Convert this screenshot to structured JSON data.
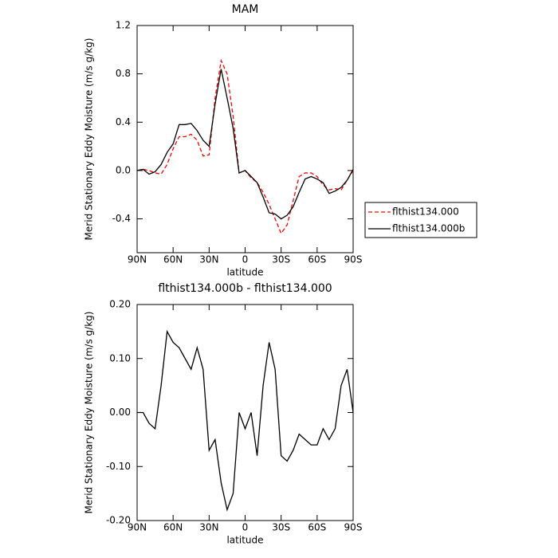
{
  "chart_data": [
    {
      "type": "line",
      "title": "MAM",
      "x_label": "latitude",
      "y_label": "Merid Stationary Eddy Moisture (m/s g/kg)",
      "x": [
        90,
        85,
        80,
        75,
        70,
        65,
        60,
        55,
        50,
        45,
        40,
        35,
        30,
        25,
        20,
        15,
        10,
        5,
        0,
        -5,
        -10,
        -15,
        -20,
        -25,
        -30,
        -35,
        -40,
        -45,
        -50,
        -55,
        -60,
        -65,
        -70,
        -75,
        -80,
        -85,
        -90
      ],
      "series": [
        {
          "name": "flthist134.000",
          "color": "#ff0000",
          "line_style": "dashed",
          "values": [
            0.0,
            0.01,
            0.0,
            -0.02,
            -0.03,
            0.05,
            0.18,
            0.28,
            0.28,
            0.3,
            0.25,
            0.12,
            0.13,
            0.6,
            0.91,
            0.8,
            0.45,
            -0.02,
            0.0,
            -0.06,
            -0.1,
            -0.18,
            -0.28,
            -0.4,
            -0.52,
            -0.45,
            -0.25,
            -0.05,
            -0.02,
            -0.02,
            -0.05,
            -0.12,
            -0.16,
            -0.15,
            -0.16,
            -0.08,
            0.0
          ]
        },
        {
          "name": "flthist134.000b",
          "color": "#000000",
          "line_style": "solid",
          "values": [
            0.0,
            0.01,
            -0.03,
            -0.01,
            0.05,
            0.15,
            0.22,
            0.38,
            0.38,
            0.39,
            0.33,
            0.25,
            0.2,
            0.55,
            0.84,
            0.6,
            0.35,
            -0.02,
            0.0,
            -0.05,
            -0.1,
            -0.22,
            -0.35,
            -0.36,
            -0.4,
            -0.37,
            -0.3,
            -0.18,
            -0.07,
            -0.05,
            -0.07,
            -0.1,
            -0.19,
            -0.17,
            -0.14,
            -0.08,
            0.01
          ]
        }
      ],
      "xlim": [
        90,
        -90
      ],
      "xticks": [
        {
          "value": 90,
          "label": "90N"
        },
        {
          "value": 60,
          "label": "60N"
        },
        {
          "value": 30,
          "label": "30N"
        },
        0,
        {
          "value": -30,
          "label": "30S"
        },
        {
          "value": -60,
          "label": "60S"
        },
        {
          "value": -90,
          "label": "90S"
        }
      ],
      "ylim": [
        -0.68,
        1.2
      ],
      "yticks": [
        -0.4,
        {
          "value": 0,
          "label": "0.0"
        },
        0.4,
        0.8,
        1.2
      ],
      "legend": "right"
    },
    {
      "type": "line",
      "title": "flthist134.000b - flthist134.000",
      "x_label": "latitude",
      "y_label": "Merid Stationary Eddy Moisture (m/s g/kg)",
      "x": [
        90,
        85,
        80,
        75,
        70,
        65,
        60,
        55,
        50,
        45,
        40,
        35,
        30,
        25,
        20,
        15,
        10,
        5,
        0,
        -5,
        -10,
        -15,
        -20,
        -25,
        -30,
        -35,
        -40,
        -45,
        -50,
        -55,
        -60,
        -65,
        -70,
        -75,
        -80,
        -85,
        -90
      ],
      "series": [
        {
          "color": "#000000",
          "line_style": "solid",
          "values": [
            0.0,
            0.0,
            -0.02,
            -0.03,
            0.05,
            0.15,
            0.13,
            0.12,
            0.1,
            0.08,
            0.12,
            0.08,
            -0.07,
            -0.05,
            -0.13,
            -0.18,
            -0.15,
            0.0,
            -0.03,
            0.0,
            -0.08,
            0.05,
            0.13,
            0.08,
            -0.08,
            -0.09,
            -0.07,
            -0.04,
            -0.05,
            -0.06,
            -0.06,
            -0.03,
            -0.05,
            -0.03,
            0.05,
            0.08,
            0.0
          ]
        }
      ],
      "xlim": [
        90,
        -90
      ],
      "xticks": [
        {
          "value": 90,
          "label": "90N"
        },
        {
          "value": 60,
          "label": "60N"
        },
        {
          "value": 30,
          "label": "30N"
        },
        0,
        {
          "value": -30,
          "label": "30S"
        },
        {
          "value": -60,
          "label": "60S"
        },
        {
          "value": -90,
          "label": "90S"
        }
      ],
      "ylim": [
        -0.2,
        0.2
      ],
      "yticks": [
        {
          "value": -0.2,
          "label": "-0.20"
        },
        {
          "value": -0.1,
          "label": "-0.10"
        },
        {
          "value": 0,
          "label": "0.00"
        },
        {
          "value": 0.1,
          "label": "0.10"
        },
        {
          "value": 0.2,
          "label": "0.20"
        }
      ]
    }
  ]
}
